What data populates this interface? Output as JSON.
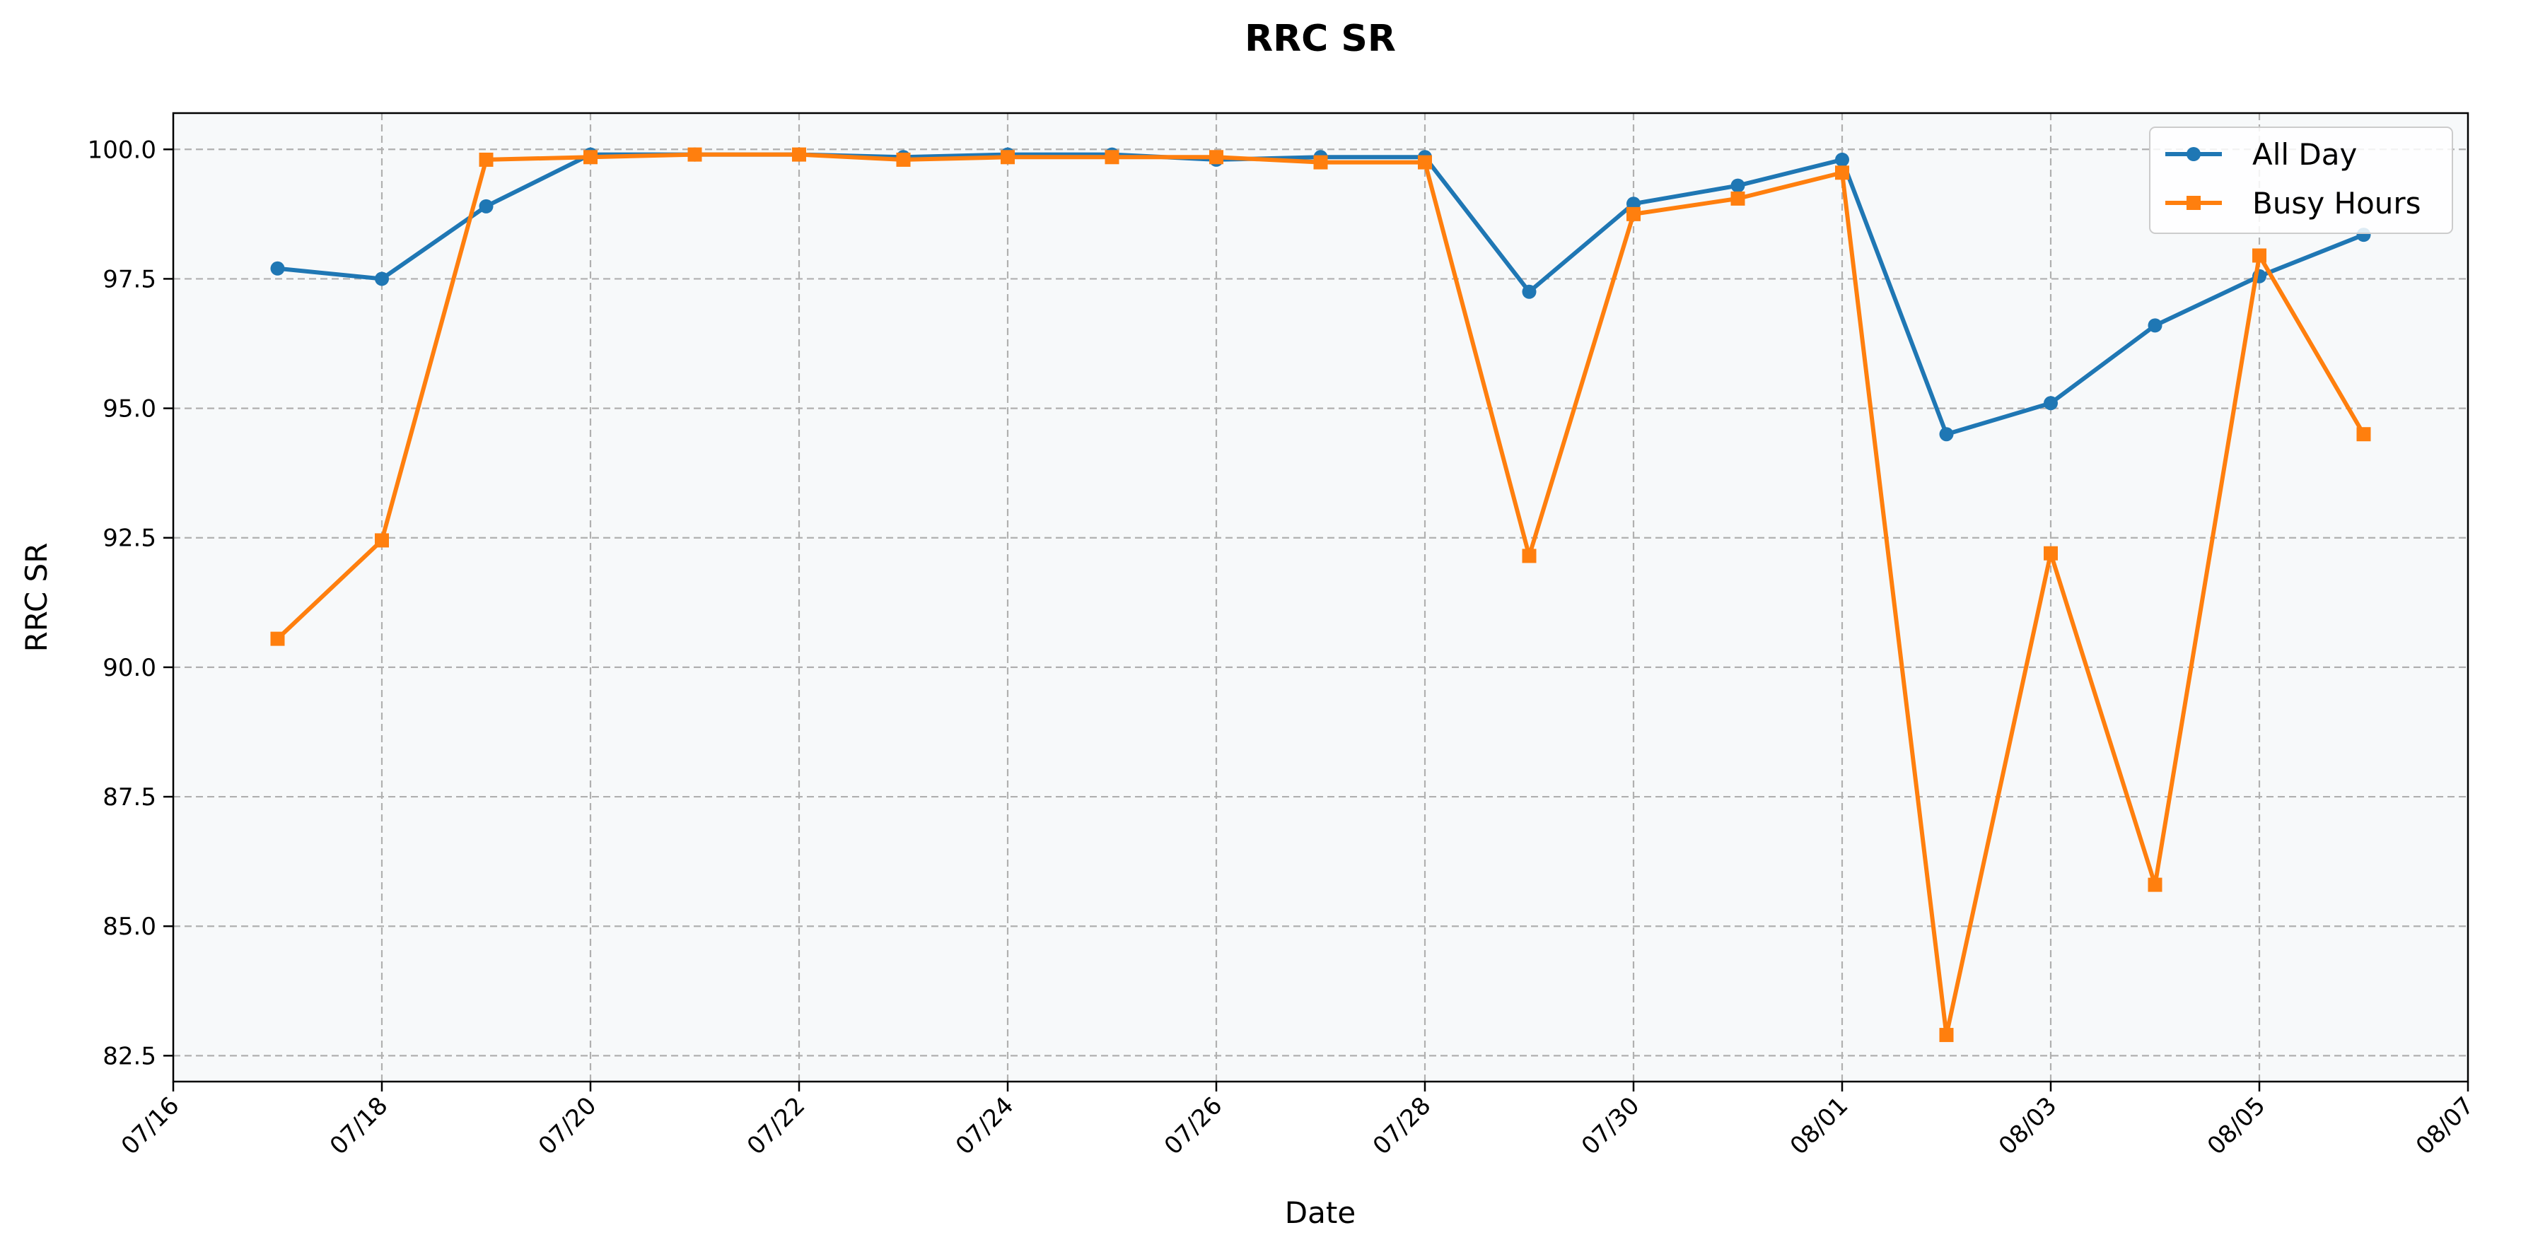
{
  "chart_data": {
    "type": "line",
    "title": "RRC SR",
    "xlabel": "Date",
    "ylabel": "RRC SR",
    "x_ticks": [
      "07/16",
      "07/18",
      "07/20",
      "07/22",
      "07/24",
      "07/26",
      "07/28",
      "07/30",
      "08/01",
      "08/03",
      "08/05",
      "08/07"
    ],
    "y_ticks": [
      "82.5",
      "85.0",
      "87.5",
      "90.0",
      "92.5",
      "95.0",
      "97.5",
      "100.0"
    ],
    "xlim": [
      "07/16",
      "08/07"
    ],
    "ylim": [
      82.0,
      100.7
    ],
    "grid": true,
    "legend_position": "top-right",
    "x": [
      "07/17",
      "07/18",
      "07/19",
      "07/20",
      "07/21",
      "07/22",
      "07/23",
      "07/24",
      "07/25",
      "07/26",
      "07/27",
      "07/28",
      "07/29",
      "07/30",
      "07/31",
      "08/01",
      "08/02",
      "08/03",
      "08/04",
      "08/05",
      "08/06"
    ],
    "series": [
      {
        "name": "All Day",
        "color": "#1f77b4",
        "marker": "circle",
        "values": [
          97.7,
          97.5,
          98.9,
          99.9,
          99.9,
          99.9,
          99.85,
          99.9,
          99.9,
          99.8,
          99.85,
          99.85,
          97.25,
          98.95,
          99.3,
          99.8,
          94.5,
          95.1,
          96.6,
          97.55,
          98.35
        ]
      },
      {
        "name": "Busy Hours",
        "color": "#ff7f0e",
        "marker": "square",
        "values": [
          90.55,
          92.45,
          99.8,
          99.85,
          99.9,
          99.9,
          99.8,
          99.85,
          99.85,
          99.85,
          99.75,
          99.75,
          92.15,
          98.75,
          99.05,
          99.55,
          82.9,
          92.2,
          85.8,
          97.95,
          94.5
        ]
      }
    ]
  },
  "style": {
    "plot_background": "#f7f9fa",
    "grid_color": "#b0b0b0"
  }
}
